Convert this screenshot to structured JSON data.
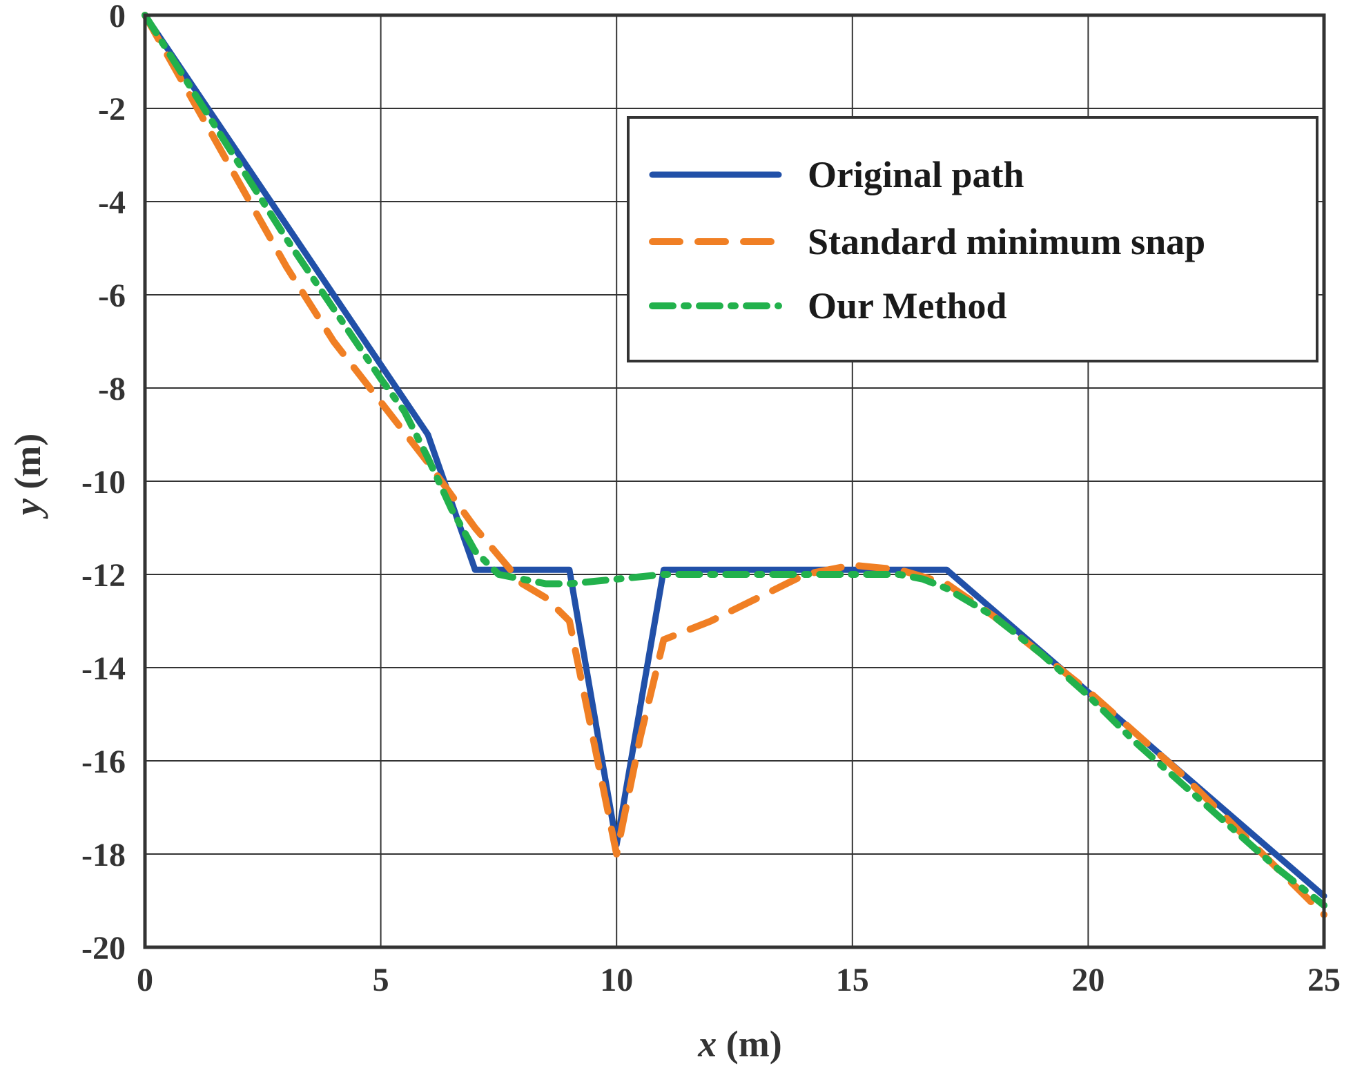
{
  "chart_data": {
    "type": "line",
    "xlabel_var": "x",
    "xlabel_unit": "(m)",
    "ylabel_var": "y",
    "ylabel_unit": "(m)",
    "xlim": [
      0,
      25
    ],
    "ylim": [
      -20,
      0
    ],
    "xticks": [
      0,
      5,
      10,
      15,
      20,
      25
    ],
    "xtick_labels": [
      "0",
      "5",
      "10",
      "15",
      "20",
      "25"
    ],
    "yticks": [
      0,
      -2,
      -4,
      -6,
      -8,
      -10,
      -12,
      -14,
      -16,
      -18,
      -20
    ],
    "ytick_labels": [
      "0",
      "-2",
      "-4",
      "-6",
      "-8",
      "-10",
      "-12",
      "-14",
      "-16",
      "-18",
      "-20"
    ],
    "grid": true,
    "legend_position": "top-right",
    "series": [
      {
        "name": "Original path",
        "color": "#2150a8",
        "style": "solid",
        "x": [
          0,
          6,
          7,
          9,
          10,
          11,
          17,
          25
        ],
        "y": [
          0,
          -9,
          -11.9,
          -11.9,
          -17.8,
          -11.9,
          -11.9,
          -18.9
        ]
      },
      {
        "name": "Standard minimum snap",
        "color": "#f07f24",
        "style": "dashed",
        "x": [
          0,
          1,
          2,
          3,
          4,
          5,
          6,
          7,
          8,
          8.5,
          9,
          9.5,
          10,
          10.5,
          11,
          12,
          13,
          14,
          15,
          16,
          17,
          18,
          19,
          20,
          21,
          22,
          23,
          24,
          25
        ],
        "y": [
          0,
          -1.8,
          -3.6,
          -5.4,
          -7.0,
          -8.3,
          -9.6,
          -11.0,
          -12.2,
          -12.5,
          -13.0,
          -15.5,
          -18.0,
          -15.5,
          -13.4,
          -13.0,
          -12.5,
          -12.0,
          -11.8,
          -11.9,
          -12.2,
          -12.9,
          -13.7,
          -14.5,
          -15.4,
          -16.3,
          -17.3,
          -18.3,
          -19.3
        ]
      },
      {
        "name": "Our Method",
        "color": "#22b14c",
        "style": "dashdot",
        "x": [
          0,
          1,
          2,
          3,
          4,
          5,
          5.5,
          6,
          6.5,
          7,
          7.5,
          8,
          8.5,
          9,
          10,
          11,
          12,
          13,
          14,
          15,
          16,
          16.5,
          17,
          18,
          19,
          20,
          21,
          22,
          23,
          24,
          25
        ],
        "y": [
          0,
          -1.6,
          -3.2,
          -4.8,
          -6.3,
          -7.8,
          -8.5,
          -9.5,
          -10.6,
          -11.5,
          -12.0,
          -12.1,
          -12.2,
          -12.2,
          -12.1,
          -12.0,
          -12.0,
          -12.0,
          -12.0,
          -12.0,
          -12.0,
          -12.1,
          -12.3,
          -12.9,
          -13.7,
          -14.6,
          -15.6,
          -16.5,
          -17.4,
          -18.3,
          -19.1
        ]
      }
    ]
  }
}
